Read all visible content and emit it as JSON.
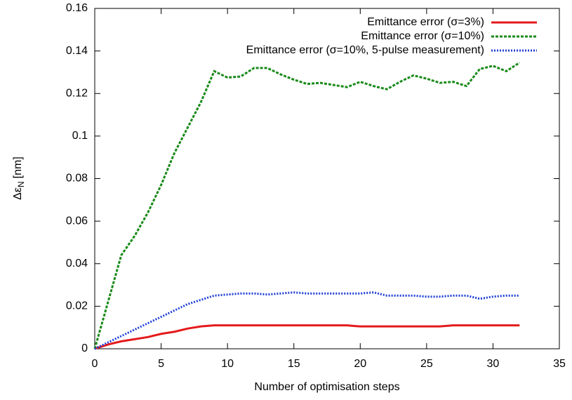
{
  "chart_data": {
    "type": "line",
    "xlabel": "Number of optimisation steps",
    "ylabel_parts": [
      "Δε",
      "N",
      "[nm]"
    ],
    "x": [
      0,
      1,
      2,
      3,
      4,
      5,
      6,
      7,
      8,
      9,
      10,
      11,
      12,
      13,
      14,
      15,
      16,
      17,
      18,
      19,
      20,
      21,
      22,
      23,
      24,
      25,
      26,
      27,
      28,
      29,
      30,
      31,
      32
    ],
    "series": [
      {
        "name": "Emittance error (σ=3%)",
        "color": "#e41a1c",
        "dash": "none",
        "values": [
          0,
          0.002,
          0.0035,
          0.0045,
          0.0055,
          0.007,
          0.008,
          0.0095,
          0.0105,
          0.011,
          0.011,
          0.011,
          0.011,
          0.011,
          0.011,
          0.011,
          0.011,
          0.011,
          0.011,
          0.011,
          0.0105,
          0.0105,
          0.0105,
          0.0105,
          0.0105,
          0.0105,
          0.0105,
          0.011,
          0.011,
          0.011,
          0.011,
          0.011,
          0.011
        ]
      },
      {
        "name": "Emittance error (σ=10%)",
        "color": "#1a8a1a",
        "dash": "4,2",
        "values": [
          0,
          0.022,
          0.044,
          0.053,
          0.064,
          0.077,
          0.092,
          0.104,
          0.116,
          0.1305,
          0.1275,
          0.128,
          0.132,
          0.132,
          0.129,
          0.1265,
          0.1245,
          0.125,
          0.124,
          0.123,
          0.1255,
          0.1235,
          0.122,
          0.1255,
          0.1285,
          0.127,
          0.125,
          0.1255,
          0.1235,
          0.1315,
          0.133,
          0.1305,
          0.1345
        ]
      },
      {
        "name": "Emittance error (σ=10%, 5-pulse measurement)",
        "color": "#1f3fd6",
        "dash": "2,2",
        "values": [
          0,
          0.003,
          0.006,
          0.009,
          0.012,
          0.015,
          0.018,
          0.021,
          0.023,
          0.025,
          0.0255,
          0.026,
          0.026,
          0.0255,
          0.026,
          0.0265,
          0.026,
          0.026,
          0.026,
          0.026,
          0.026,
          0.0265,
          0.025,
          0.025,
          0.025,
          0.0245,
          0.0245,
          0.025,
          0.025,
          0.0235,
          0.0245,
          0.025,
          0.025
        ]
      }
    ],
    "xlim": [
      0,
      35
    ],
    "xticks": [
      0,
      5,
      10,
      15,
      20,
      25,
      30,
      35
    ],
    "ylim": [
      0,
      0.16
    ],
    "yticks": [
      0,
      0.02,
      0.04,
      0.06,
      0.08,
      0.1,
      0.12,
      0.14,
      0.16
    ],
    "legend": "top-right"
  }
}
